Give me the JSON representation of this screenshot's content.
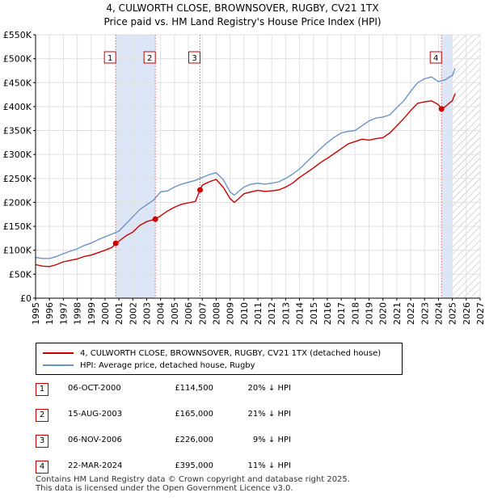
{
  "header": {
    "title_line1": "4, CULWORTH CLOSE, BROWNSOVER, RUGBY, CV21 1TX",
    "title_line2": "Price paid vs. HM Land Registry's House Price Index (HPI)"
  },
  "colors": {
    "property_line": "#cc0000",
    "hpi_line": "#6a93c8",
    "shade_band": "#dde6f6",
    "marker_border": "#c00000",
    "grid": "#e0e0e0"
  },
  "legend": {
    "property_label": "4, CULWORTH CLOSE, BROWNSOVER, RUGBY, CV21 1TX (detached house)",
    "hpi_label": "HPI: Average price, detached house, Rugby"
  },
  "sales": [
    {
      "num": "1",
      "date": "06-OCT-2000",
      "price": "£114,500",
      "diff": "20% ↓ HPI"
    },
    {
      "num": "2",
      "date": "15-AUG-2003",
      "price": "£165,000",
      "diff": "21% ↓ HPI"
    },
    {
      "num": "3",
      "date": "06-NOV-2006",
      "price": "£226,000",
      "diff": "9% ↓ HPI"
    },
    {
      "num": "4",
      "date": "22-MAR-2024",
      "price": "£395,000",
      "diff": "11% ↓ HPI"
    }
  ],
  "footer": {
    "line1": "Contains HM Land Registry data © Crown copyright and database right 2025.",
    "line2": "This data is licensed under the Open Government Licence v3.0."
  },
  "chart_data": {
    "type": "line",
    "title": "4, CULWORTH CLOSE, BROWNSOVER, RUGBY, CV21 1TX Price paid vs. HM Land Registry's House Price Index (HPI)",
    "xlim": [
      1995,
      2027
    ],
    "ylim": [
      0,
      550000
    ],
    "x_ticks": [
      "1995",
      "1996",
      "1997",
      "1998",
      "1999",
      "2000",
      "2001",
      "2002",
      "2003",
      "2004",
      "2005",
      "2006",
      "2007",
      "2008",
      "2009",
      "2010",
      "2011",
      "2012",
      "2013",
      "2014",
      "2015",
      "2016",
      "2017",
      "2018",
      "2019",
      "2020",
      "2021",
      "2022",
      "2023",
      "2024",
      "2025",
      "2026",
      "2027"
    ],
    "y_ticks": [
      {
        "value": 0,
        "label": "£0"
      },
      {
        "value": 50000,
        "label": "£50K"
      },
      {
        "value": 100000,
        "label": "£100K"
      },
      {
        "value": 150000,
        "label": "£150K"
      },
      {
        "value": 200000,
        "label": "£200K"
      },
      {
        "value": 250000,
        "label": "£250K"
      },
      {
        "value": 300000,
        "label": "£300K"
      },
      {
        "value": 350000,
        "label": "£350K"
      },
      {
        "value": 400000,
        "label": "£400K"
      },
      {
        "value": 450000,
        "label": "£450K"
      },
      {
        "value": 500000,
        "label": "£500K"
      },
      {
        "value": 550000,
        "label": "£550K"
      }
    ],
    "grid": true,
    "shaded_periods": [
      [
        2000.77,
        2003.62
      ],
      [
        2024.22,
        2025.0
      ]
    ],
    "forecast_start": 2025.0,
    "series": [
      {
        "name": "4, CULWORTH CLOSE, BROWNSOVER, RUGBY, CV21 1TX (detached house)",
        "x": [
          1995.0,
          1995.5,
          1996.0,
          1996.5,
          1997.0,
          1997.5,
          1998.0,
          1998.5,
          1999.0,
          1999.5,
          2000.0,
          2000.5,
          2000.77,
          2001.0,
          2001.5,
          2002.0,
          2002.5,
          2003.0,
          2003.62,
          2004.0,
          2004.5,
          2005.0,
          2005.5,
          2006.0,
          2006.5,
          2006.84,
          2007.0,
          2007.5,
          2008.0,
          2008.5,
          2009.0,
          2009.3,
          2009.7,
          2010.0,
          2010.5,
          2011.0,
          2011.5,
          2012.0,
          2012.5,
          2013.0,
          2013.5,
          2014.0,
          2014.5,
          2015.0,
          2015.5,
          2016.0,
          2016.5,
          2017.0,
          2017.5,
          2018.0,
          2018.5,
          2019.0,
          2019.5,
          2020.0,
          2020.5,
          2021.0,
          2021.5,
          2022.0,
          2022.5,
          2023.0,
          2023.5,
          2024.0,
          2024.22,
          2024.5,
          2024.8,
          2025.0,
          2025.2
        ],
        "y": [
          70000,
          67000,
          66000,
          70000,
          76000,
          79000,
          82000,
          87000,
          90000,
          95000,
          100000,
          106000,
          114500,
          119000,
          130000,
          138000,
          152000,
          160000,
          165000,
          172000,
          182000,
          190000,
          196000,
          199000,
          202000,
          226000,
          236000,
          243000,
          248000,
          232000,
          208000,
          200000,
          210000,
          218000,
          222000,
          225000,
          223000,
          224000,
          226000,
          232000,
          240000,
          252000,
          262000,
          272000,
          283000,
          292000,
          302000,
          312000,
          322000,
          327000,
          332000,
          330000,
          333000,
          335000,
          345000,
          360000,
          375000,
          392000,
          407000,
          410000,
          412000,
          404000,
          395000,
          400000,
          408000,
          412000,
          427000
        ]
      },
      {
        "name": "HPI: Average price, detached house, Rugby",
        "x": [
          1995.0,
          1995.5,
          1996.0,
          1996.5,
          1997.0,
          1997.5,
          1998.0,
          1998.5,
          1999.0,
          1999.5,
          2000.0,
          2000.5,
          2001.0,
          2001.5,
          2002.0,
          2002.5,
          2003.0,
          2003.5,
          2004.0,
          2004.5,
          2005.0,
          2005.5,
          2006.0,
          2006.5,
          2007.0,
          2007.5,
          2008.0,
          2008.5,
          2009.0,
          2009.3,
          2009.7,
          2010.0,
          2010.5,
          2011.0,
          2011.5,
          2012.0,
          2012.5,
          2013.0,
          2013.5,
          2014.0,
          2014.5,
          2015.0,
          2015.5,
          2016.0,
          2016.5,
          2017.0,
          2017.5,
          2018.0,
          2018.5,
          2019.0,
          2019.5,
          2020.0,
          2020.5,
          2021.0,
          2021.5,
          2022.0,
          2022.5,
          2023.0,
          2023.5,
          2024.0,
          2024.5,
          2024.8,
          2025.0,
          2025.2
        ],
        "y": [
          85000,
          83000,
          83000,
          87000,
          93000,
          98000,
          103000,
          110000,
          115000,
          122000,
          128000,
          134000,
          140000,
          155000,
          170000,
          185000,
          195000,
          205000,
          222000,
          224000,
          232000,
          238000,
          242000,
          246000,
          252000,
          258000,
          262000,
          248000,
          222000,
          215000,
          225000,
          232000,
          238000,
          240000,
          238000,
          240000,
          243000,
          250000,
          259000,
          270000,
          284000,
          298000,
          312000,
          325000,
          336000,
          345000,
          348000,
          350000,
          360000,
          370000,
          376000,
          378000,
          383000,
          398000,
          412000,
          432000,
          450000,
          458000,
          462000,
          452000,
          456000,
          462000,
          465000,
          480000
        ]
      }
    ],
    "markers": [
      {
        "label": "1",
        "x": 2000.77,
        "y": 114500
      },
      {
        "label": "2",
        "x": 2003.62,
        "y": 165000
      },
      {
        "label": "3",
        "x": 2006.84,
        "y": 226000
      },
      {
        "label": "4",
        "x": 2024.22,
        "y": 395000
      }
    ]
  }
}
